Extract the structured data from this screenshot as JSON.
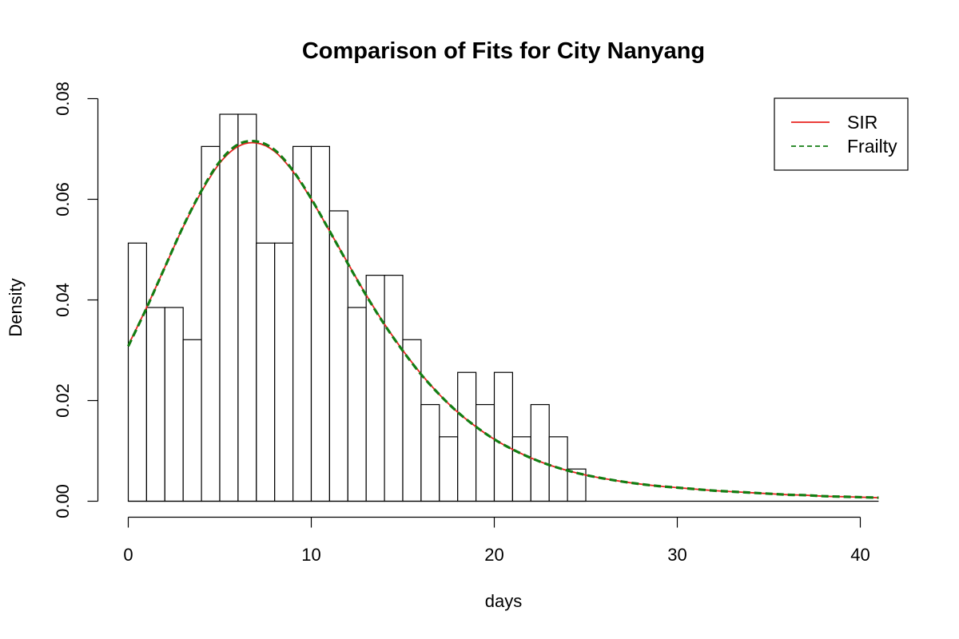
{
  "chart_data": {
    "type": "histogram",
    "title": "Comparison of Fits for City Nanyang",
    "xlabel": "days",
    "ylabel": "Density",
    "xlim": [
      0,
      41
    ],
    "ylim": [
      0,
      0.08
    ],
    "x_ticks": [
      "0",
      "10",
      "20",
      "30",
      "40"
    ],
    "y_ticks": [
      "0.00",
      "0.02",
      "0.04",
      "0.06",
      "0.08"
    ],
    "bins": {
      "start": 0,
      "width": 1,
      "density": [
        0.0513,
        0.0385,
        0.0385,
        0.0321,
        0.0705,
        0.0769,
        0.0769,
        0.0513,
        0.0513,
        0.0705,
        0.0705,
        0.0577,
        0.0385,
        0.0449,
        0.0449,
        0.0321,
        0.0192,
        0.0128,
        0.0256,
        0.0192,
        0.0256,
        0.0128,
        0.0192,
        0.0128,
        0.0064
      ]
    },
    "series": [
      {
        "name": "SIR",
        "style": "solid",
        "color": "#e8231f",
        "x": [
          0,
          1,
          2,
          3,
          4,
          5,
          6,
          7,
          8,
          9,
          10,
          11,
          12,
          13,
          14,
          15,
          16,
          17,
          18,
          19,
          20,
          21,
          22,
          23,
          24,
          25,
          26,
          27,
          28,
          29,
          30,
          31,
          32,
          33,
          34,
          35,
          36,
          37,
          38,
          39,
          40,
          41
        ],
        "y": [
          0.031,
          0.0385,
          0.0465,
          0.0545,
          0.0615,
          0.0672,
          0.0705,
          0.0712,
          0.0695,
          0.0655,
          0.06,
          0.0537,
          0.0473,
          0.041,
          0.0352,
          0.03,
          0.0253,
          0.0212,
          0.0177,
          0.0148,
          0.0123,
          0.0103,
          0.0086,
          0.0072,
          0.0061,
          0.0052,
          0.0045,
          0.0039,
          0.0034,
          0.003,
          0.0027,
          0.0024,
          0.0021,
          0.0019,
          0.0017,
          0.0015,
          0.0013,
          0.0012,
          0.001,
          0.0009,
          0.0008,
          0.0007
        ]
      },
      {
        "name": "Frailty",
        "style": "dashed",
        "color": "#137d13",
        "x": [
          0,
          1,
          2,
          3,
          4,
          5,
          6,
          7,
          8,
          9,
          10,
          11,
          12,
          13,
          14,
          15,
          16,
          17,
          18,
          19,
          20,
          21,
          22,
          23,
          24,
          25,
          26,
          27,
          28,
          29,
          30,
          31,
          32,
          33,
          34,
          35,
          36,
          37,
          38,
          39,
          40,
          41
        ],
        "y": [
          0.0308,
          0.0384,
          0.0465,
          0.0546,
          0.0617,
          0.0675,
          0.0709,
          0.0715,
          0.0698,
          0.0657,
          0.0601,
          0.0537,
          0.0472,
          0.0409,
          0.0351,
          0.0299,
          0.0252,
          0.0212,
          0.0177,
          0.0148,
          0.0123,
          0.0103,
          0.0086,
          0.0072,
          0.0061,
          0.0052,
          0.0045,
          0.0039,
          0.0034,
          0.003,
          0.0027,
          0.0024,
          0.0021,
          0.0019,
          0.0017,
          0.0015,
          0.0013,
          0.0012,
          0.001,
          0.0009,
          0.0008,
          0.0007
        ]
      }
    ],
    "legend": {
      "position": "top-right",
      "labels": [
        "SIR",
        "Frailty"
      ]
    }
  }
}
